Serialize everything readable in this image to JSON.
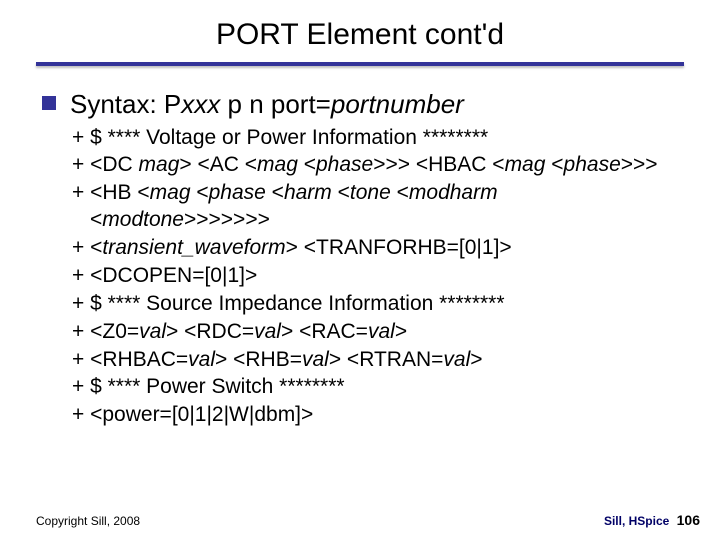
{
  "title": "PORT Element cont'd",
  "syntax": {
    "prefix": "Syntax: P",
    "xxx": "xxx",
    "mid": " p n port=",
    "portnumber": "portnumber"
  },
  "items": [
    "+ $ **** Voltage or Power Information ********",
    "+ <DC mag> <AC <mag <phase>>> <HBAC <mag <phase>>>",
    "+ <HB <mag <phase <harm <tone <modharm <modtone>>>>>>>",
    "+ <transient_waveform> <TRANFORHB=[0|1]>",
    "+ <DCOPEN=[0|1]>",
    "+ $ **** Source Impedance Information ********",
    "+ <Z0=val> <RDC=val> <RAC=val>",
    "+ <RHBAC=val> <RHB=val> <RTRAN=val>",
    "+ $ **** Power Switch ********",
    "+ <power=[0|1|2|W|dbm]>"
  ],
  "italic_items": {
    "1": {
      "text": "+ <DC ",
      "it": "mag",
      "rest": "> <AC <",
      "it2": "mag",
      "rest2": " <",
      "it3": "phase",
      "rest3": ">>> <HBAC <",
      "it4": "mag",
      "rest4": " <",
      "it5": "phase",
      "rest5": ">>>"
    },
    "2": {
      "text": "+ <HB <",
      "it": "mag",
      "r1": " <",
      "it2": "phase",
      "r2": " <",
      "it3": "harm",
      "r3": " <",
      "it4": "tone",
      "r4": " <",
      "it5": "modharm",
      "r5": " <",
      "it6": "modtone",
      "r6": ">>>>>>>"
    },
    "3": {
      "text": "+ <",
      "it": "transient_waveform",
      "rest": "> <TRANFORHB=[0|1]>"
    },
    "6": {
      "text": "+ <Z0=",
      "it": "val",
      "r1": "> <RDC=",
      "it2": "val",
      "r2": "> <RAC=",
      "it3": "val",
      "r3": ">"
    },
    "7": {
      "text": "+ <RHBAC=",
      "it": "val",
      "r1": "> <RHB=",
      "it2": "val",
      "r2": "> <RTRAN=",
      "it3": "val",
      "r3": ">"
    }
  },
  "footer": {
    "copyright": "Copyright Sill, 2008",
    "label": "Sill, HSpice",
    "page": "106"
  },
  "colors": {
    "accent": "#333399",
    "text": "#000000",
    "footer_label": "#000066"
  }
}
